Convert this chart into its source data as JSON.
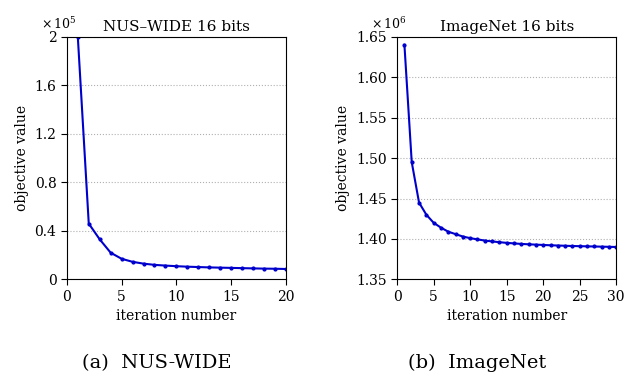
{
  "plot1": {
    "title": "NUS–WIDE 16 bits",
    "xlabel": "iteration number",
    "ylabel": "objective value",
    "caption": "(a)  NUS-WIDE",
    "x": [
      1,
      2,
      3,
      4,
      5,
      6,
      7,
      8,
      9,
      10,
      11,
      12,
      13,
      14,
      15,
      16,
      17,
      18,
      19,
      20
    ],
    "y": [
      200000,
      46000,
      33000,
      22000,
      17000,
      14500,
      13000,
      12000,
      11400,
      10900,
      10500,
      10200,
      9900,
      9700,
      9500,
      9300,
      9100,
      8900,
      8800,
      8600
    ],
    "xlim": [
      0,
      20
    ],
    "ylim": [
      0,
      200000
    ],
    "yticks": [
      0,
      40000,
      80000,
      120000,
      160000,
      200000
    ],
    "ytick_labels": [
      "0",
      "0.4",
      "0.8",
      "1.2",
      "1.6",
      "2"
    ],
    "xticks": [
      0,
      5,
      10,
      15,
      20
    ],
    "color": "#0000cc"
  },
  "plot2": {
    "title": "ImageNet 16 bits",
    "xlabel": "iteration number",
    "ylabel": "objective value",
    "caption": "(b)  ImageNet",
    "x": [
      1,
      2,
      3,
      4,
      5,
      6,
      7,
      8,
      9,
      10,
      11,
      12,
      13,
      14,
      15,
      16,
      17,
      18,
      19,
      20,
      21,
      22,
      23,
      24,
      25,
      26,
      27,
      28,
      29,
      30
    ],
    "y": [
      1640000,
      1495000,
      1445000,
      1430000,
      1420000,
      1414000,
      1409000,
      1406000,
      1403000,
      1401000,
      1399500,
      1398000,
      1397000,
      1396000,
      1395200,
      1394500,
      1393900,
      1393400,
      1393000,
      1392600,
      1392200,
      1391900,
      1391600,
      1391300,
      1391100,
      1390900,
      1390700,
      1390500,
      1390300,
      1390100
    ],
    "xlim": [
      0,
      30
    ],
    "ylim": [
      1350000,
      1650000
    ],
    "yticks": [
      1350000,
      1400000,
      1450000,
      1500000,
      1550000,
      1600000,
      1650000
    ],
    "ytick_labels": [
      "1.35",
      "1.40",
      "1.45",
      "1.50",
      "1.55",
      "1.60",
      "1.65"
    ],
    "xticks": [
      0,
      5,
      10,
      15,
      20,
      25,
      30
    ],
    "color": "#0000cc"
  },
  "background_color": "#ffffff",
  "line_color": "#0000cc",
  "grid_color": "#b0b0b0",
  "marker": ".",
  "marker_size": 4,
  "linewidth": 1.5,
  "tick_fontsize": 10,
  "label_fontsize": 10,
  "title_fontsize": 11,
  "caption_fontsize": 14
}
